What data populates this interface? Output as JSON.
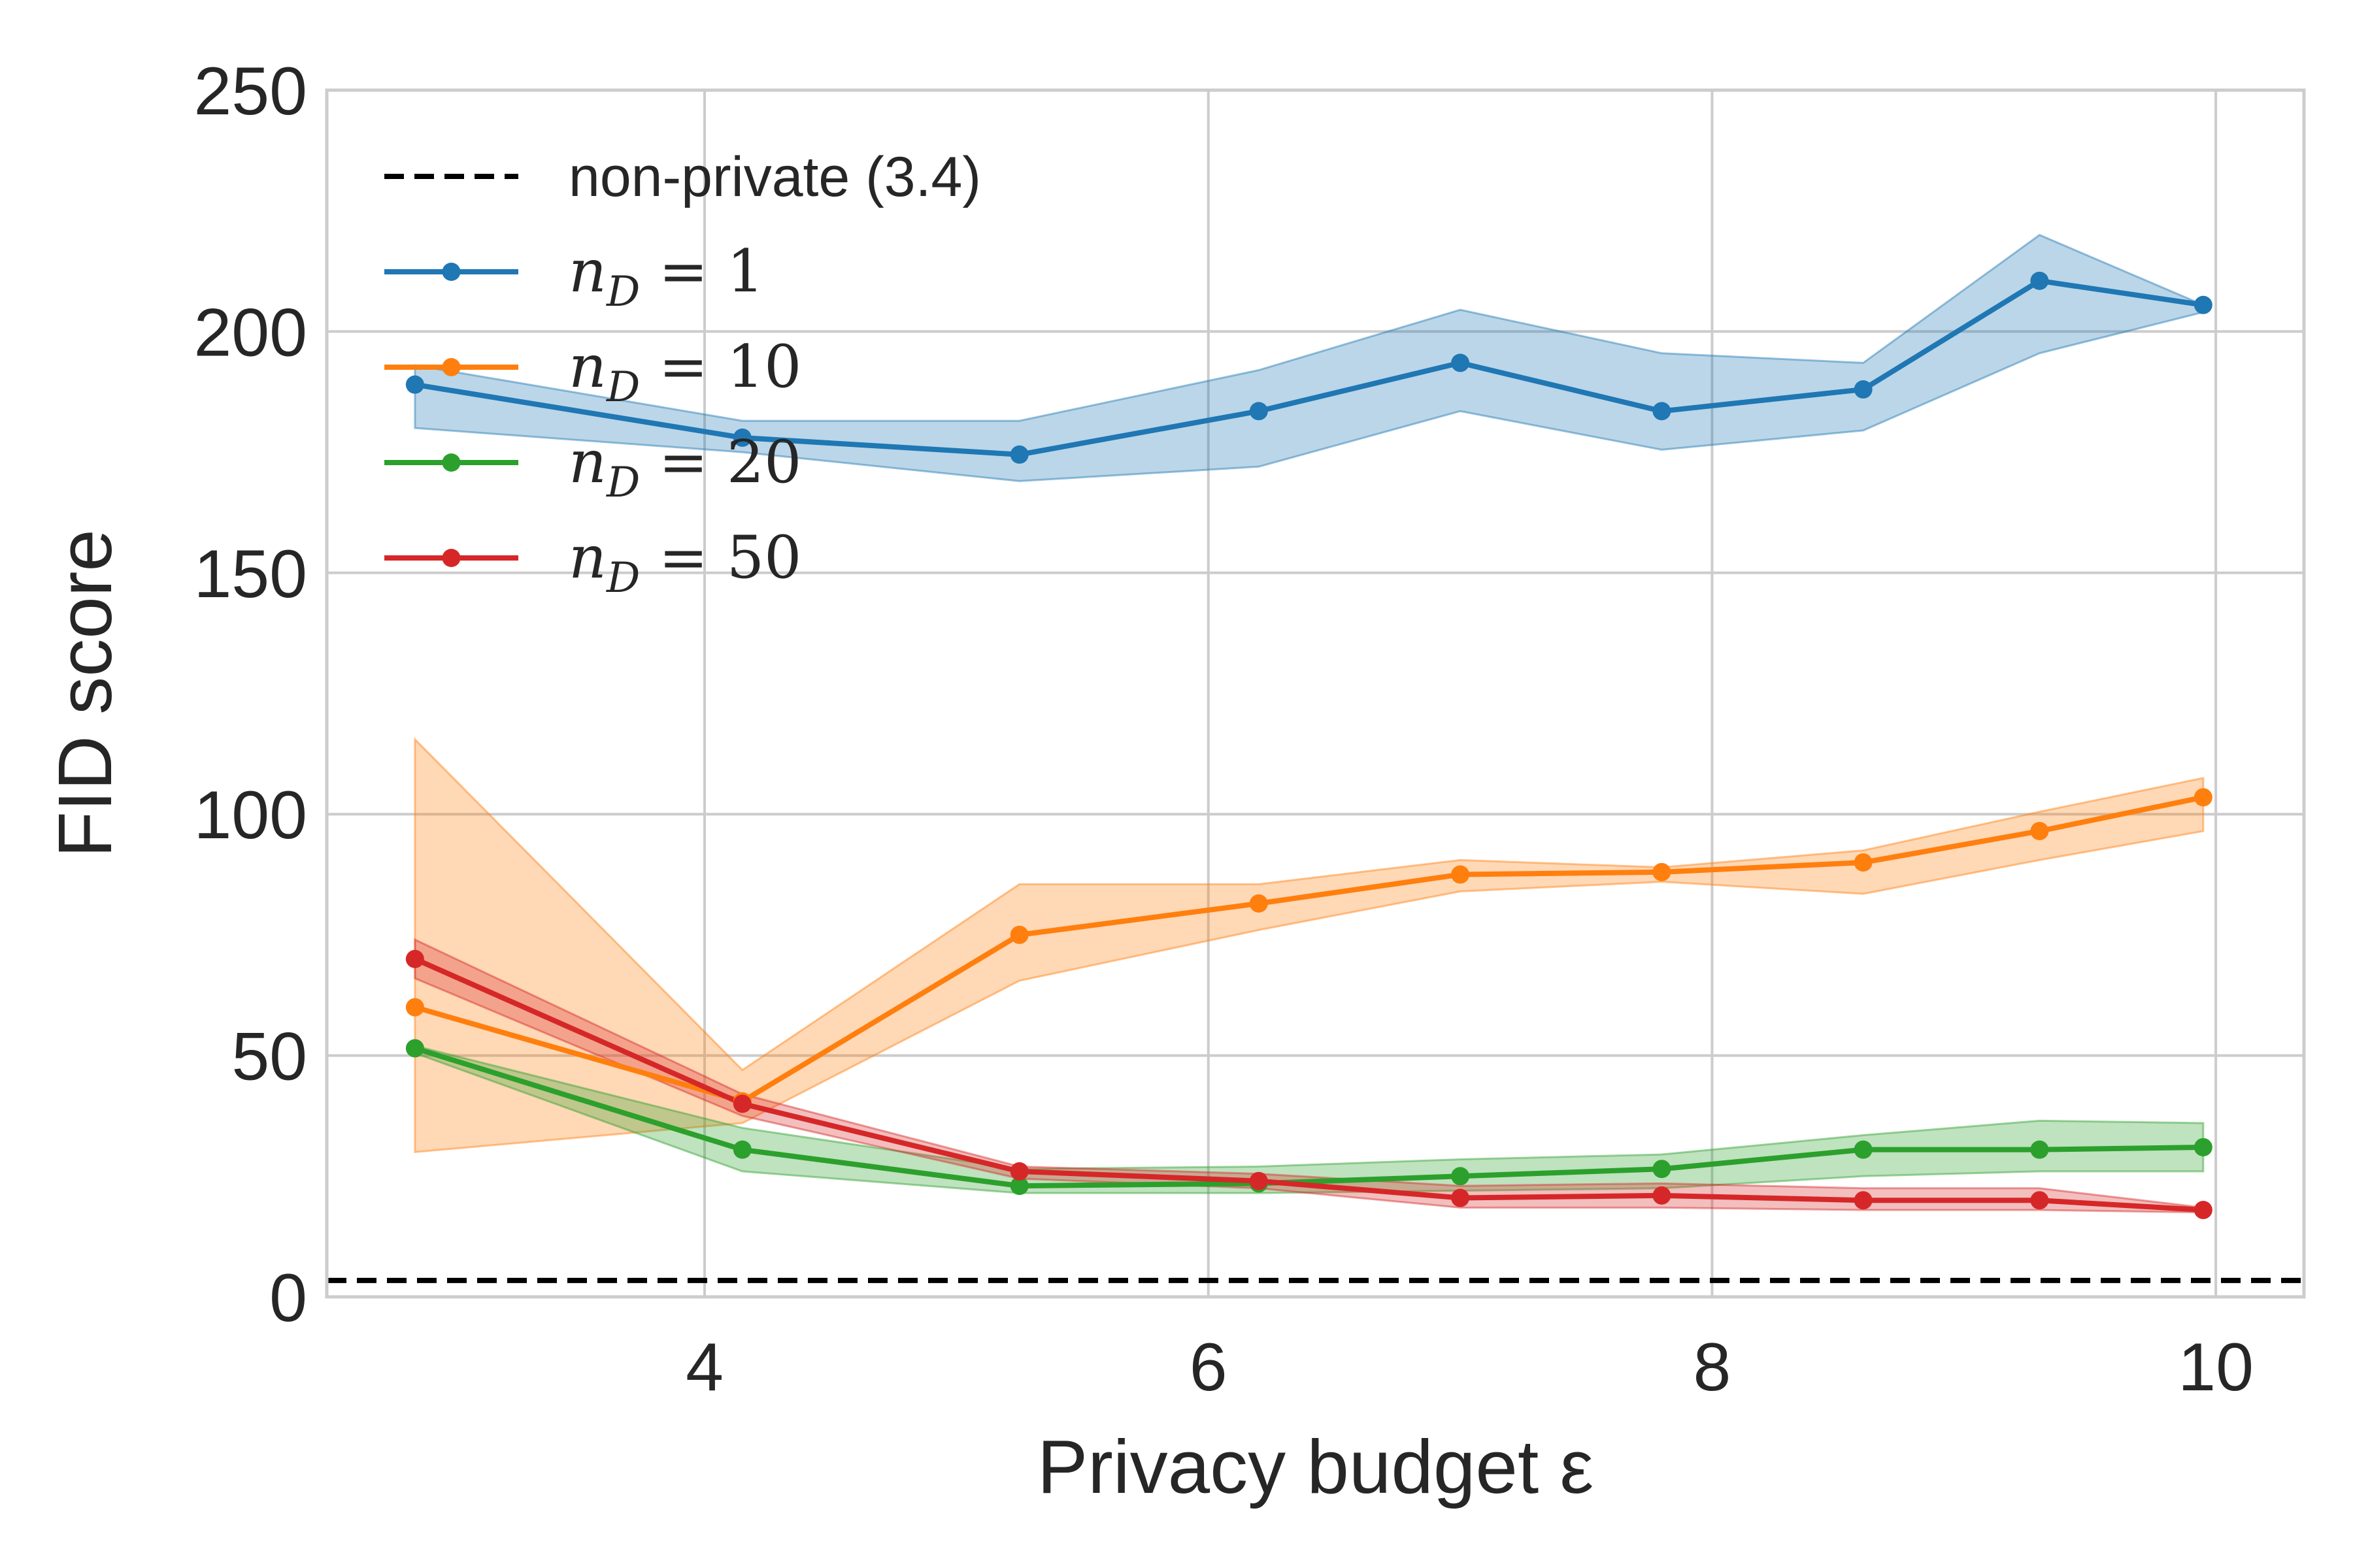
{
  "chart_data": {
    "type": "line",
    "title": "",
    "xlabel": "Privacy budget ε",
    "ylabel": "FID score",
    "xlim": [
      2.5,
      10.35
    ],
    "ylim": [
      0,
      250
    ],
    "xticks": [
      4,
      6,
      8,
      10
    ],
    "yticks": [
      0,
      50,
      100,
      150,
      200,
      250
    ],
    "grid": true,
    "legend_position": "top-left",
    "reference_line": {
      "label": "non-private (3.4)",
      "value": 3.4,
      "style": "dashed",
      "color": "#000000"
    },
    "series": [
      {
        "name": "n_D = 1",
        "legend_var": "n",
        "legend_sub": "D",
        "legend_value": "1",
        "color": "#1f77b4",
        "x": [
          2.85,
          4.15,
          5.25,
          6.2,
          7.0,
          7.8,
          8.6,
          9.3,
          9.95
        ],
        "y": [
          189,
          178,
          174.5,
          183.5,
          193.5,
          183.5,
          188,
          210.5,
          205.5
        ],
        "lower": [
          180,
          175,
          169,
          172,
          183.5,
          175.5,
          179.5,
          195.5,
          204
        ],
        "upper": [
          193,
          181.5,
          181.5,
          192,
          204.5,
          195.5,
          193.5,
          220,
          205.5
        ]
      },
      {
        "name": "n_D = 10",
        "legend_var": "n",
        "legend_sub": "D",
        "legend_value": "10",
        "color": "#ff7f0e",
        "x": [
          2.85,
          4.15,
          5.25,
          6.2,
          7.0,
          7.8,
          8.6,
          9.3,
          9.95
        ],
        "y": [
          60,
          40.5,
          75,
          81.5,
          87.5,
          88,
          90,
          96.5,
          103.5
        ],
        "lower": [
          30,
          36,
          65.5,
          76,
          84,
          86,
          83.5,
          90.5,
          96.5
        ],
        "upper": [
          115.5,
          47,
          85.5,
          85.5,
          90.5,
          89,
          92.5,
          100.5,
          107.5
        ]
      },
      {
        "name": "n_D = 20",
        "legend_var": "n",
        "legend_sub": "D",
        "legend_value": "20",
        "color": "#2ca02c",
        "x": [
          2.85,
          4.15,
          5.25,
          6.2,
          7.0,
          7.8,
          8.6,
          9.3,
          9.95
        ],
        "y": [
          51.5,
          30.5,
          23,
          23.5,
          25,
          26.5,
          30.5,
          30.5,
          31
        ],
        "lower": [
          50.5,
          26,
          21.5,
          21.5,
          22,
          22.5,
          25,
          26,
          26
        ],
        "upper": [
          52,
          35,
          26.5,
          27,
          28.5,
          29.5,
          33.5,
          36.5,
          36
        ]
      },
      {
        "name": "n_D = 50",
        "legend_var": "n",
        "legend_sub": "D",
        "legend_value": "50",
        "color": "#d62728",
        "x": [
          2.85,
          4.15,
          5.25,
          6.2,
          7.0,
          7.8,
          8.6,
          9.3,
          9.95
        ],
        "y": [
          70,
          40,
          26,
          24,
          20.5,
          21,
          20,
          20,
          18
        ],
        "lower": [
          66,
          37.5,
          24.5,
          22.5,
          18.5,
          18.5,
          18,
          18,
          17.5
        ],
        "upper": [
          74,
          42,
          27,
          25.5,
          23,
          23.5,
          22.5,
          22.5,
          18.5
        ]
      }
    ]
  }
}
